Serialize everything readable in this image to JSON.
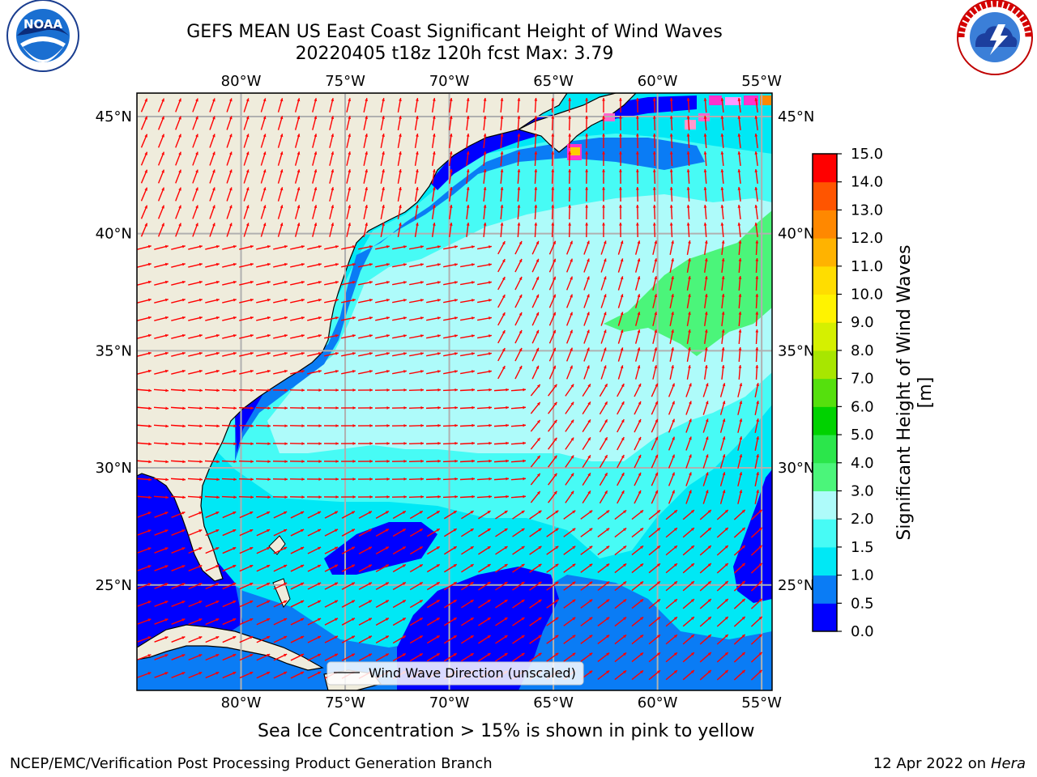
{
  "header": {
    "title_line1": "GEFS MEAN US East Coast Significant Height of Wind Waves",
    "title_line2": "20220405 t18z 120h fcst   Max: 3.79"
  },
  "logos": {
    "left": {
      "name": "noaa-logo",
      "text": "NOAA",
      "ring_text": "NATIONAL OCEANIC AND ATMOSPHERIC ADMINISTRATION · U.S. DEPARTMENT OF COMMERCE"
    },
    "right": {
      "name": "nws-logo",
      "ring_text": "NATIONAL WEATHER SERVICE"
    }
  },
  "map": {
    "lon_ticks": [
      "80°W",
      "75°W",
      "70°W",
      "65°W",
      "60°W",
      "55°W"
    ],
    "lat_ticks": [
      "45°N",
      "40°N",
      "35°N",
      "30°N",
      "25°N"
    ],
    "lon_values": [
      -80,
      -75,
      -70,
      -65,
      -60,
      -55
    ],
    "lat_values": [
      45,
      40,
      35,
      30,
      25
    ],
    "lon_range": [
      -85,
      -54.5
    ],
    "lat_range": [
      20.5,
      46
    ],
    "land_color": "#efecdc",
    "arrow_color": "#ff0000",
    "grid_color": "#b0b0b0",
    "legend_label": "Wind Wave Direction (unscaled)"
  },
  "colorbar": {
    "label": "Significant Height of Wind Waves [m]",
    "ticks": [
      "0.0",
      "0.5",
      "1.0",
      "1.5",
      "2.0",
      "3.0",
      "4.0",
      "5.0",
      "6.0",
      "7.0",
      "8.0",
      "9.0",
      "10.0",
      "11.0",
      "12.0",
      "13.0",
      "14.0",
      "15.0"
    ],
    "colors": [
      "#0000ff",
      "#0a7cf5",
      "#00e8f5",
      "#47fbf5",
      "#aefbfa",
      "#4bf57a",
      "#2be64b",
      "#00d200",
      "#55e00d",
      "#a8e600",
      "#d5f000",
      "#fff300",
      "#ffdd00",
      "#ffb300",
      "#ff8800",
      "#ff5500",
      "#ff0000"
    ]
  },
  "footer": {
    "sea_ice_note": "Sea Ice Concentration > 15% is shown in pink to yellow",
    "credit": "NCEP/EMC/Verification Post Processing Product Generation Branch",
    "date": "12 Apr 2022 on",
    "machine": "Hera"
  }
}
